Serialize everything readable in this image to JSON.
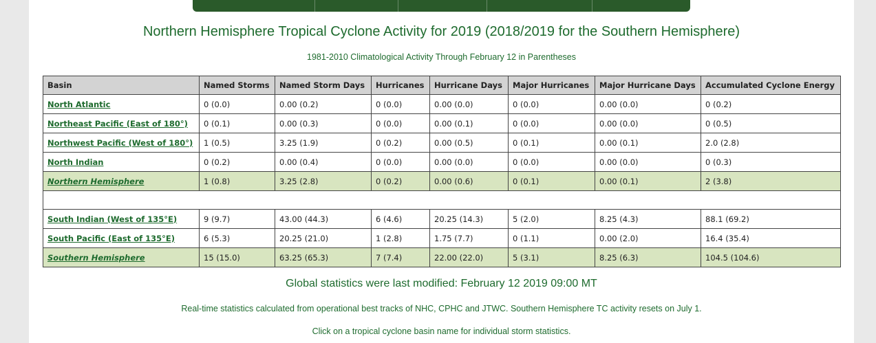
{
  "title": "Northern Hemisphere Tropical Cyclone Activity for 2019 (2018/2019 for the Southern Hemisphere)",
  "subtitle": "1981-2010 Climatological Activity Through February 12 in Parentheses",
  "table": {
    "headers": [
      "Basin",
      "Named Storms",
      "Named Storm Days",
      "Hurricanes",
      "Hurricane Days",
      "Major Hurricanes",
      "Major Hurricane Days",
      "Accumulated Cyclone Energy"
    ],
    "rows": [
      [
        "North Atlantic",
        "0 (0.0)",
        "0.00 (0.2)",
        "0 (0.0)",
        "0.00 (0.0)",
        "0 (0.0)",
        "0.00 (0.0)",
        "0 (0.2)"
      ],
      [
        "Northeast Pacific (East of 180°)",
        "0 (0.1)",
        "0.00 (0.3)",
        "0 (0.0)",
        "0.00 (0.1)",
        "0 (0.0)",
        "0.00 (0.0)",
        "0 (0.5)"
      ],
      [
        "Northwest Pacific (West of 180°)",
        "1 (0.5)",
        "3.25 (1.9)",
        "0 (0.2)",
        "0.00 (0.5)",
        "0 (0.1)",
        "0.00 (0.1)",
        "2.0 (2.8)"
      ],
      [
        "North Indian",
        "0 (0.2)",
        "0.00 (0.4)",
        "0 (0.0)",
        "0.00 (0.0)",
        "0 (0.0)",
        "0.00 (0.0)",
        "0 (0.3)"
      ],
      [
        "Northern Hemisphere",
        "1 (0.8)",
        "3.25 (2.8)",
        "0 (0.2)",
        "0.00 (0.6)",
        "0 (0.1)",
        "0.00 (0.1)",
        "2 (3.8)"
      ],
      [
        "South Indian (West of 135°E)",
        "9 (9.7)",
        "43.00 (44.3)",
        "6 (4.6)",
        "20.25 (14.3)",
        "5 (2.0)",
        "8.25 (4.3)",
        "88.1 (69.2)"
      ],
      [
        "South Pacific (East of 135°E)",
        "6 (5.3)",
        "20.25 (21.0)",
        "1 (2.8)",
        "1.75 (7.7)",
        "0 (1.1)",
        "0.00 (2.0)",
        "16.4 (35.4)"
      ],
      [
        "Southern Hemisphere",
        "15 (15.0)",
        "63.25 (65.3)",
        "7 (7.4)",
        "22.00 (22.0)",
        "5 (3.1)",
        "8.25 (6.3)",
        "104.5 (104.6)"
      ]
    ]
  },
  "modified": "Global statistics were last modified: February 12 2019 09:00 MT",
  "note1": "Real-time statistics calculated from operational best tracks of NHC, CPHC and JTWC. Southern Hemisphere TC activity resets on July 1.",
  "note2": "Click on a tropical cyclone basin name for individual storm statistics."
}
